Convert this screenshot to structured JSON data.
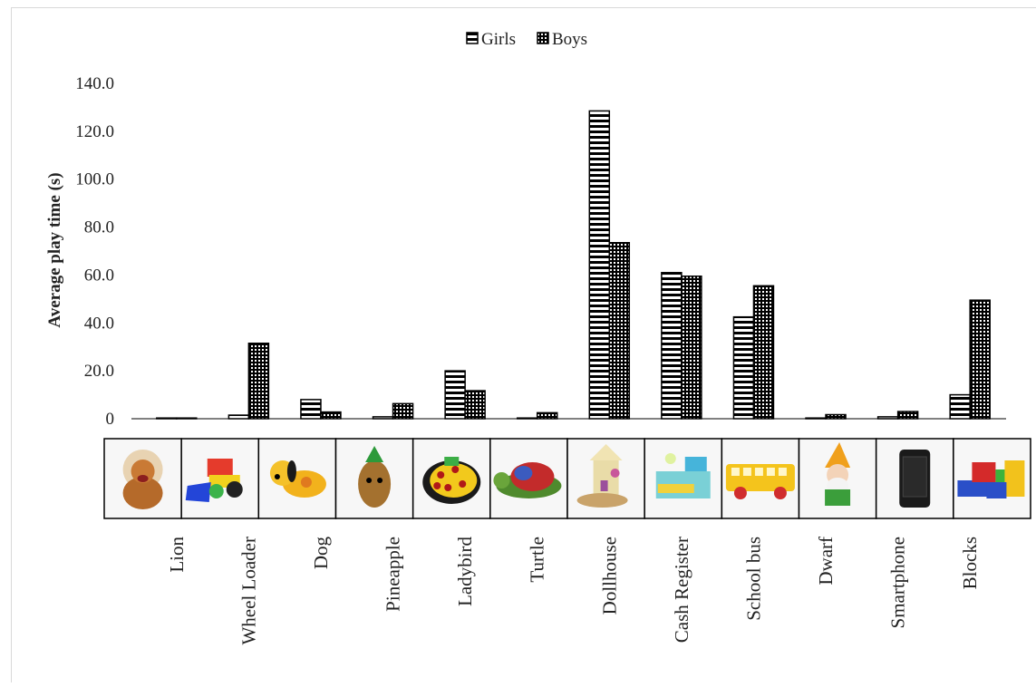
{
  "chart_data": {
    "type": "bar",
    "title": "",
    "xlabel": "",
    "ylabel": "Average play time (s)",
    "ylim": [
      0,
      140
    ],
    "yticks": [
      "0",
      "20.0",
      "40.0",
      "60.0",
      "80.0",
      "100.0",
      "120.0",
      "140.0"
    ],
    "grid": false,
    "legend_position": "top-center",
    "categories": [
      "Lion",
      "Wheel Loader",
      "Dog",
      "Pineapple",
      "Ladybird",
      "Turtle",
      "Dollhouse",
      "Cash Register",
      "School bus",
      "Dwarf",
      "Smartphone",
      "Blocks"
    ],
    "series": [
      {
        "name": "Girls",
        "pattern": "horizontal-stripes",
        "values": [
          0.3,
          1.5,
          8.0,
          0.8,
          20.0,
          0.3,
          128.5,
          61.0,
          42.5,
          0.3,
          0.8,
          10.0
        ]
      },
      {
        "name": "Boys",
        "pattern": "dots",
        "values": [
          0.3,
          31.5,
          2.8,
          6.3,
          11.7,
          2.5,
          73.5,
          59.5,
          55.5,
          1.7,
          3.0,
          49.5
        ]
      }
    ],
    "category_images": [
      "lion-plush-toy",
      "wheel-loader-toy",
      "dog-toy",
      "pineapple-plush-toy",
      "ladybird-toy",
      "turtle-plush-toy",
      "dollhouse-toy",
      "cash-register-toy",
      "school-bus-toy",
      "dwarf-plush-toy",
      "smartphone",
      "blocks-toy"
    ]
  }
}
